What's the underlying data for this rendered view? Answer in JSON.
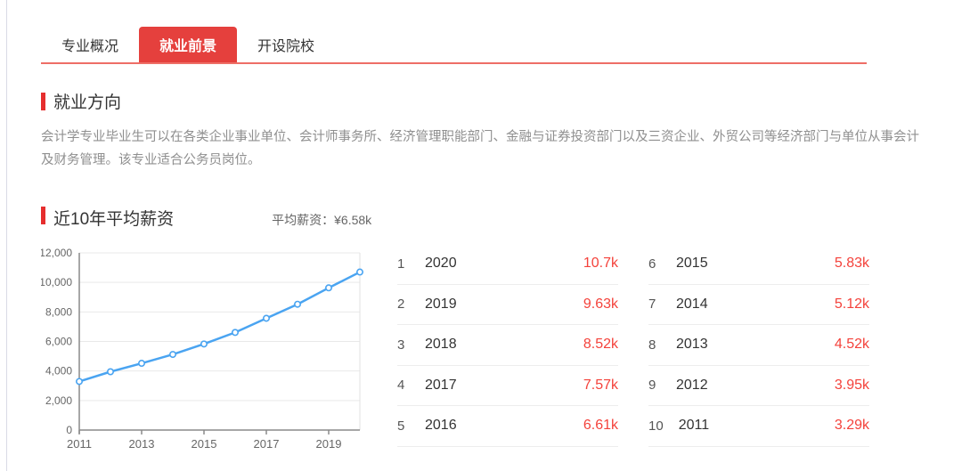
{
  "tabs": [
    {
      "label": "专业概况",
      "active": false
    },
    {
      "label": "就业前景",
      "active": true
    },
    {
      "label": "开设院校",
      "active": false
    }
  ],
  "employment_direction": {
    "title": "就业方向",
    "description": "会计学专业毕业生可以在各类企业事业单位、会计师事务所、经济管理职能部门、金融与证券投资部门以及三资企业、外贸公司等经济部门与单位从事会计及财务管理。该专业适合公务员岗位。"
  },
  "salary_section": {
    "title": "近10年平均薪资",
    "average_label": "平均薪资：¥6.58k"
  },
  "chart_data": {
    "type": "line",
    "title": "近10年平均薪资",
    "x": [
      2011,
      2012,
      2013,
      2014,
      2015,
      2016,
      2017,
      2018,
      2019,
      2020
    ],
    "values": [
      3290,
      3950,
      4520,
      5120,
      5830,
      6610,
      7570,
      8520,
      9630,
      10700
    ],
    "xlabel": "",
    "ylabel": "",
    "ylim": [
      0,
      12000
    ],
    "ytick_step": 2000,
    "xticks": [
      2011,
      2013,
      2015,
      2017,
      2019
    ],
    "grid": true,
    "legend_position": "none",
    "line_color": "#4aa4f1",
    "marker": "open-circle"
  },
  "ranking": {
    "rows": [
      {
        "rank": "1",
        "year": "2020",
        "value": "10.7k"
      },
      {
        "rank": "2",
        "year": "2019",
        "value": "9.63k"
      },
      {
        "rank": "3",
        "year": "2018",
        "value": "8.52k"
      },
      {
        "rank": "4",
        "year": "2017",
        "value": "7.57k"
      },
      {
        "rank": "5",
        "year": "2016",
        "value": "6.61k"
      },
      {
        "rank": "6",
        "year": "2015",
        "value": "5.83k"
      },
      {
        "rank": "7",
        "year": "2014",
        "value": "5.12k"
      },
      {
        "rank": "8",
        "year": "2013",
        "value": "4.52k"
      },
      {
        "rank": "9",
        "year": "2012",
        "value": "3.95k"
      },
      {
        "rank": "10",
        "year": "2011",
        "value": "3.29k"
      }
    ]
  },
  "colors": {
    "accent_red": "#e5403d",
    "underline_red": "#ee6e66",
    "section_bar_red": "#e62e2e",
    "value_red": "#f4423b",
    "line_blue": "#4aa4f1",
    "grid_gray": "#e9e9e9",
    "axis_gray": "#8a8a8a"
  }
}
